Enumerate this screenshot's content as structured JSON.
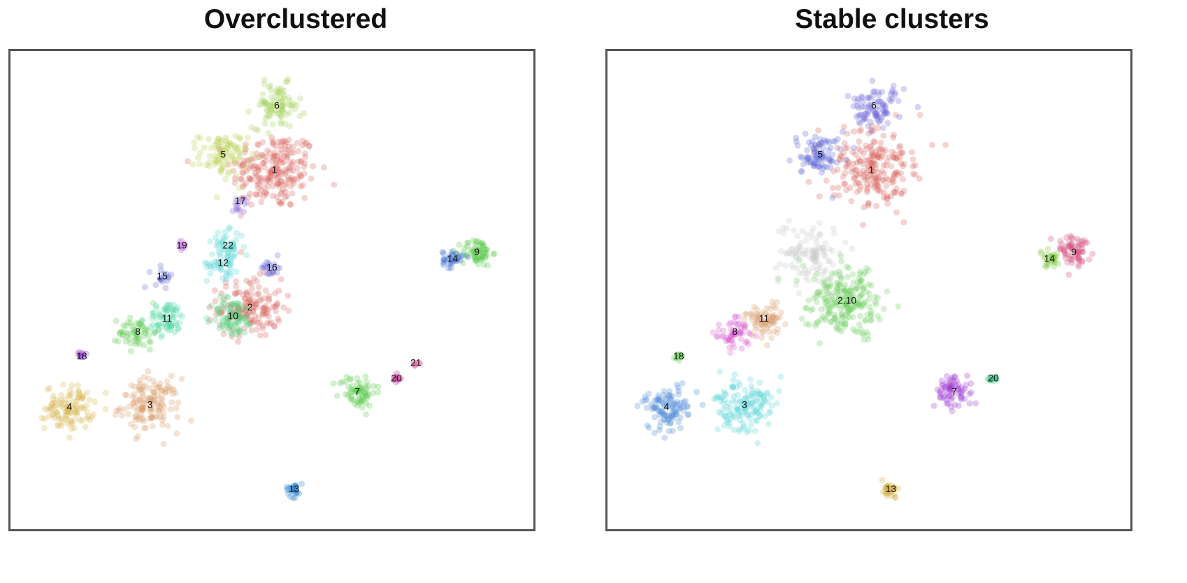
{
  "chart_data": [
    {
      "type": "scatter",
      "title": "Overclustered",
      "xlim": [
        0,
        100
      ],
      "ylim": [
        0,
        100
      ],
      "clusters": [
        {
          "label": "1",
          "x": 50.5,
          "y": 77,
          "spread": 8,
          "n": 220,
          "color": "#d9625a"
        },
        {
          "label": "2",
          "x": 45.5,
          "y": 46,
          "spread": 6,
          "n": 150,
          "color": "#d9625a"
        },
        {
          "label": "3",
          "x": 25,
          "y": 24,
          "spread": 5.5,
          "n": 140,
          "color": "#d79a68"
        },
        {
          "label": "4",
          "x": 8.5,
          "y": 23.5,
          "spread": 4.5,
          "n": 110,
          "color": "#d6b34a"
        },
        {
          "label": "5",
          "x": 40,
          "y": 80.5,
          "spread": 4.5,
          "n": 90,
          "color": "#b6d14b"
        },
        {
          "label": "6",
          "x": 51,
          "y": 91.5,
          "spread": 4.5,
          "n": 90,
          "color": "#a2d256"
        },
        {
          "label": "7",
          "x": 67.5,
          "y": 27,
          "spread": 3.5,
          "n": 70,
          "color": "#59c94a"
        },
        {
          "label": "8",
          "x": 22.5,
          "y": 40.5,
          "spread": 3.5,
          "n": 60,
          "color": "#59c94a"
        },
        {
          "label": "9",
          "x": 92,
          "y": 58.5,
          "spread": 2.8,
          "n": 70,
          "color": "#59c94a"
        },
        {
          "label": "10",
          "x": 42,
          "y": 44,
          "spread": 4,
          "n": 80,
          "color": "#4fcf7a"
        },
        {
          "label": "11",
          "x": 28.5,
          "y": 43.5,
          "spread": 3.5,
          "n": 70,
          "color": "#4fd6a0"
        },
        {
          "label": "12",
          "x": 40,
          "y": 56,
          "spread": 3,
          "n": 45,
          "color": "#58d3d9"
        },
        {
          "label": "13",
          "x": 54.5,
          "y": 5,
          "spread": 1.5,
          "n": 30,
          "color": "#2e86d1"
        },
        {
          "label": "14",
          "x": 87,
          "y": 57,
          "spread": 1.8,
          "n": 30,
          "color": "#2e62d1"
        },
        {
          "label": "15",
          "x": 27.5,
          "y": 53,
          "spread": 2,
          "n": 18,
          "color": "#5e68d6"
        },
        {
          "label": "16",
          "x": 50,
          "y": 55,
          "spread": 2,
          "n": 22,
          "color": "#6a6adb"
        },
        {
          "label": "17",
          "x": 43.5,
          "y": 70,
          "spread": 1.6,
          "n": 15,
          "color": "#8a62d8"
        },
        {
          "label": "18",
          "x": 11,
          "y": 35,
          "spread": 0.9,
          "n": 10,
          "color": "#8c2fd1"
        },
        {
          "label": "19",
          "x": 31.5,
          "y": 60,
          "spread": 1.2,
          "n": 10,
          "color": "#c15ee0"
        },
        {
          "label": "20",
          "x": 75.5,
          "y": 30,
          "spread": 0.9,
          "n": 10,
          "color": "#c8238f"
        },
        {
          "label": "21",
          "x": 79.5,
          "y": 33.5,
          "spread": 0.7,
          "n": 6,
          "color": "#d8398b"
        },
        {
          "label": "22",
          "x": 41,
          "y": 60,
          "spread": 3,
          "n": 45,
          "color": "#5ad8d0"
        }
      ]
    },
    {
      "type": "scatter",
      "title": "Stable clusters",
      "xlim": [
        0,
        100
      ],
      "ylim": [
        0,
        100
      ],
      "clusters": [
        {
          "label": "1",
          "x": 50.5,
          "y": 77,
          "spread": 8,
          "n": 220,
          "color": "#d9625a"
        },
        {
          "label": "2.10",
          "x": 45.5,
          "y": 47.5,
          "spread": 7.5,
          "n": 230,
          "color": "#6ccd5c"
        },
        {
          "label": "3",
          "x": 24.5,
          "y": 24,
          "spread": 5.5,
          "n": 140,
          "color": "#58d3d9"
        },
        {
          "label": "4",
          "x": 8.5,
          "y": 23.5,
          "spread": 4.5,
          "n": 110,
          "color": "#4a87d6"
        },
        {
          "label": "5",
          "x": 40,
          "y": 80.5,
          "spread": 4.5,
          "n": 90,
          "color": "#5e68d6"
        },
        {
          "label": "6",
          "x": 51,
          "y": 91.5,
          "spread": 4.5,
          "n": 90,
          "color": "#6a62d8"
        },
        {
          "label": "7",
          "x": 67.5,
          "y": 27,
          "spread": 3.5,
          "n": 70,
          "color": "#9a34d0"
        },
        {
          "label": "8",
          "x": 22.5,
          "y": 40.5,
          "spread": 3.5,
          "n": 60,
          "color": "#d75ad0"
        },
        {
          "label": "9",
          "x": 92,
          "y": 58.5,
          "spread": 2.8,
          "n": 70,
          "color": "#d34a7a"
        },
        {
          "label": "11",
          "x": 28.5,
          "y": 43.5,
          "spread": 3.5,
          "n": 70,
          "color": "#d79a68"
        },
        {
          "label": "13",
          "x": 54.5,
          "y": 5,
          "spread": 1.5,
          "n": 30,
          "color": "#d4a838"
        },
        {
          "label": "14",
          "x": 87,
          "y": 57,
          "spread": 1.8,
          "n": 30,
          "color": "#7ac83d"
        },
        {
          "label": "18",
          "x": 11,
          "y": 35,
          "spread": 0.9,
          "n": 10,
          "color": "#59c94a"
        },
        {
          "label": "20",
          "x": 75.5,
          "y": 30,
          "spread": 1.2,
          "n": 12,
          "color": "#2fbf78"
        },
        {
          "label": "",
          "x": 38,
          "y": 58,
          "spread": 6,
          "n": 110,
          "color": "#c9c9c9"
        }
      ]
    }
  ]
}
